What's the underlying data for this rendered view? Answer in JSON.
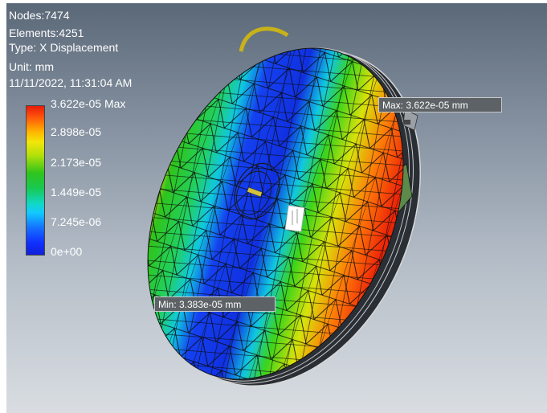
{
  "info": {
    "nodes": "Nodes:7474",
    "elements": "Elements:4251",
    "type": "Type: X Displacement",
    "unit": "Unit: mm",
    "timestamp": "11/11/2022, 11:31:04 AM"
  },
  "legend": {
    "labels": [
      "3.622e-05 Max",
      "2.898e-05",
      "2.173e-05",
      "1.449e-05",
      "7.245e-06",
      "0e+00"
    ],
    "colors": [
      "#e81b0a",
      "#f2e60a",
      "#2fc41c",
      "#10d8c8",
      "#1470ff",
      "#1020d8"
    ]
  },
  "probes": {
    "max_label": "Max: 3.622e-05 mm",
    "min_label": "Min: 3.383e-05 mm"
  }
}
